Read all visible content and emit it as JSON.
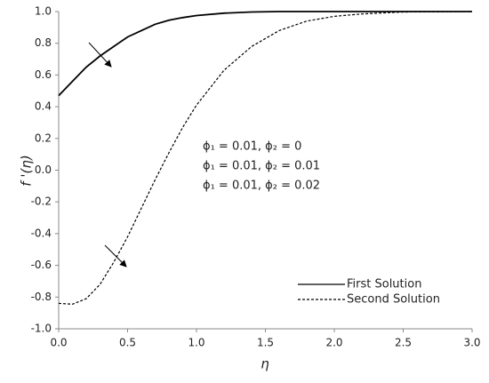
{
  "chart_data": {
    "type": "line",
    "xlabel": "η",
    "ylabel": "f '(η)",
    "x": [
      0,
      0.1,
      0.2,
      0.3,
      0.4,
      0.5,
      0.6,
      0.7,
      0.8,
      0.9,
      1.0,
      1.2,
      1.4,
      1.6,
      1.8,
      2.0,
      2.2,
      2.5,
      3.0
    ],
    "series": [
      {
        "name": "First Solution",
        "color": "#000000",
        "dash": false,
        "values": [
          0.47,
          0.56,
          0.65,
          0.72,
          0.78,
          0.84,
          0.88,
          0.92,
          0.945,
          0.962,
          0.975,
          0.99,
          0.997,
          1.0,
          1.0,
          1.0,
          1.0,
          1.0,
          1.0
        ]
      },
      {
        "name": "Second Solution",
        "color": "#000000",
        "dash": true,
        "values": [
          -0.84,
          -0.845,
          -0.81,
          -0.72,
          -0.58,
          -0.42,
          -0.24,
          -0.06,
          0.11,
          0.27,
          0.41,
          0.63,
          0.78,
          0.88,
          0.94,
          0.97,
          0.985,
          0.997,
          1.0
        ]
      }
    ],
    "annotations": [
      "ϕ₁ = 0.01, ϕ₂ = 0",
      "ϕ₁ = 0.01, ϕ₂ = 0.01",
      "ϕ₁ = 0.01, ϕ₂ = 0.02"
    ],
    "xlim": [
      0,
      3
    ],
    "xticks": [
      {
        "value": 0,
        "label": "0.0"
      },
      0.5,
      {
        "value": 1,
        "label": "1.0"
      },
      1.5,
      {
        "value": 2,
        "label": "2.0"
      },
      2.5,
      {
        "value": 3,
        "label": "3.0"
      }
    ],
    "ylim": [
      -1,
      1
    ],
    "yticks": [
      {
        "value": -1,
        "label": "-1.0"
      },
      -0.8,
      -0.6,
      -0.4,
      -0.2,
      {
        "value": 0,
        "label": "0.0"
      },
      0.2,
      0.4,
      0.6,
      0.8,
      {
        "value": 1,
        "label": "1.0"
      }
    ],
    "legend": "lower right"
  }
}
